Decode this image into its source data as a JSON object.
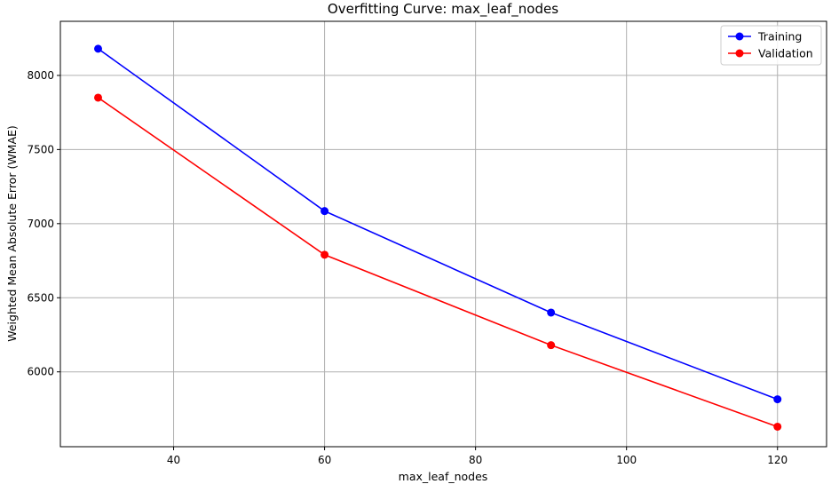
{
  "chart_data": {
    "type": "line",
    "title": "Overfitting Curve: max_leaf_nodes",
    "xlabel": "max_leaf_nodes",
    "ylabel": "Weighted Mean Absolute Error (WMAE)",
    "x": [
      30,
      60,
      90,
      120
    ],
    "xlim": [
      25,
      126.5
    ],
    "ylim": [
      5495,
      8365
    ],
    "xticks": [
      40,
      60,
      80,
      100,
      120
    ],
    "yticks": [
      6000,
      6500,
      7000,
      7500,
      8000
    ],
    "grid": true,
    "legend_position": "top-right",
    "series": [
      {
        "name": "Training",
        "color": "#0000ff",
        "values": [
          8180,
          7085,
          6400,
          5815
        ]
      },
      {
        "name": "Validation",
        "color": "#ff0000",
        "values": [
          7850,
          6790,
          6180,
          5630
        ]
      }
    ]
  }
}
